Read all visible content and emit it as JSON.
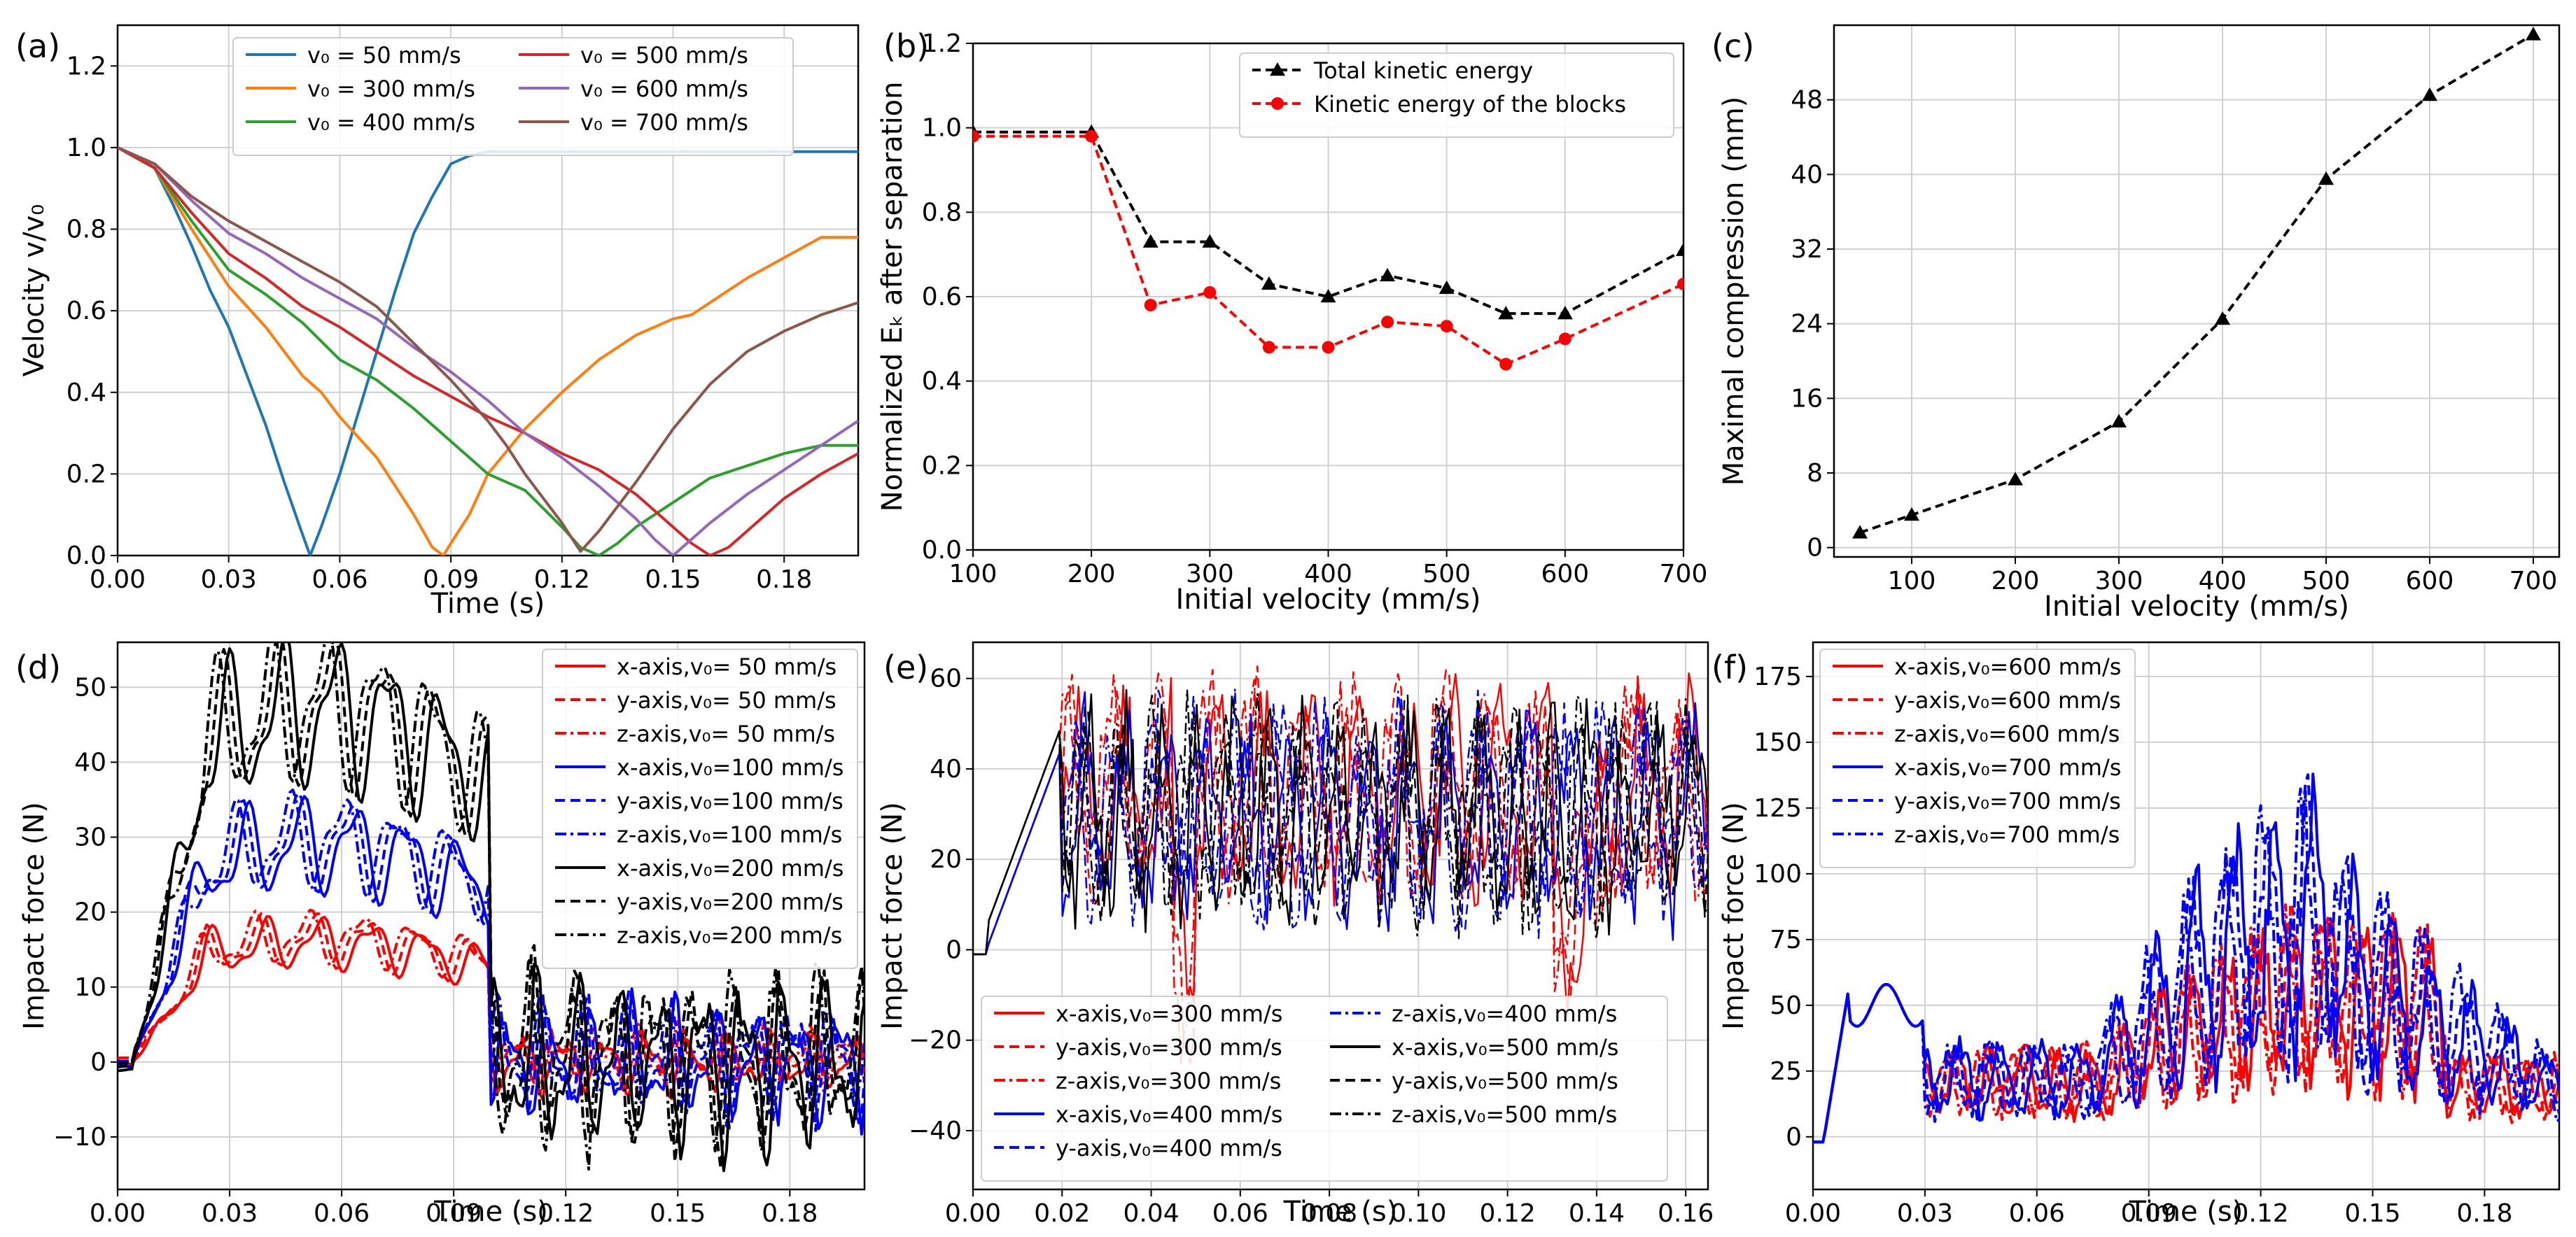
{
  "chart_data": [
    {
      "panel_label": "(a)",
      "type": "line",
      "xlabel": "Time (s)",
      "ylabel": "Velocity v/v₀",
      "xlim": [
        0,
        0.2
      ],
      "ylim": [
        0,
        1.3
      ],
      "xticks": [
        "0.00",
        "0.03",
        "0.06",
        "0.09",
        "0.12",
        "0.15",
        "0.18"
      ],
      "yticks": [
        "0.0",
        "0.2",
        "0.4",
        "0.6",
        "0.8",
        "1.0",
        "1.2"
      ],
      "grid": true,
      "legend_placement": "top",
      "series": [
        {
          "name": "v₀ =  50 mm/s",
          "color": "#1f77b4",
          "x": [
            0,
            0.005,
            0.01,
            0.015,
            0.02,
            0.025,
            0.03,
            0.035,
            0.04,
            0.045,
            0.05,
            0.052,
            0.055,
            0.06,
            0.065,
            0.07,
            0.075,
            0.08,
            0.085,
            0.09,
            0.095,
            0.1,
            0.105,
            0.11,
            0.15,
            0.2
          ],
          "y": [
            1.0,
            0.98,
            0.95,
            0.86,
            0.76,
            0.65,
            0.56,
            0.44,
            0.32,
            0.18,
            0.05,
            0.0,
            0.07,
            0.2,
            0.35,
            0.5,
            0.65,
            0.79,
            0.88,
            0.96,
            0.98,
            0.99,
            0.99,
            0.99,
            0.99,
            0.99
          ]
        },
        {
          "name": "v₀ = 300 mm/s",
          "color": "#ff7f0e",
          "x": [
            0,
            0.01,
            0.02,
            0.03,
            0.04,
            0.05,
            0.055,
            0.06,
            0.07,
            0.08,
            0.085,
            0.088,
            0.09,
            0.095,
            0.1,
            0.11,
            0.12,
            0.13,
            0.14,
            0.15,
            0.155,
            0.16,
            0.17,
            0.18,
            0.19,
            0.2
          ],
          "y": [
            1.0,
            0.95,
            0.8,
            0.66,
            0.56,
            0.44,
            0.4,
            0.34,
            0.24,
            0.1,
            0.02,
            0.0,
            0.03,
            0.1,
            0.2,
            0.31,
            0.4,
            0.48,
            0.54,
            0.58,
            0.59,
            0.62,
            0.68,
            0.73,
            0.78,
            0.78
          ]
        },
        {
          "name": "v₀ = 400 mm/s",
          "color": "#2ca02c",
          "x": [
            0,
            0.01,
            0.02,
            0.03,
            0.04,
            0.05,
            0.06,
            0.07,
            0.08,
            0.09,
            0.1,
            0.11,
            0.12,
            0.125,
            0.13,
            0.135,
            0.14,
            0.15,
            0.16,
            0.17,
            0.18,
            0.19,
            0.2
          ],
          "y": [
            1.0,
            0.95,
            0.82,
            0.7,
            0.64,
            0.57,
            0.48,
            0.43,
            0.36,
            0.28,
            0.2,
            0.16,
            0.07,
            0.02,
            0.0,
            0.03,
            0.07,
            0.13,
            0.19,
            0.22,
            0.25,
            0.27,
            0.27
          ]
        },
        {
          "name": "v₀ = 500 mm/s",
          "color": "#d62728",
          "x": [
            0,
            0.01,
            0.02,
            0.03,
            0.04,
            0.05,
            0.06,
            0.07,
            0.08,
            0.09,
            0.1,
            0.11,
            0.12,
            0.13,
            0.14,
            0.15,
            0.155,
            0.16,
            0.165,
            0.17,
            0.18,
            0.19,
            0.2
          ],
          "y": [
            1.0,
            0.95,
            0.84,
            0.74,
            0.68,
            0.61,
            0.56,
            0.5,
            0.44,
            0.39,
            0.34,
            0.3,
            0.25,
            0.21,
            0.15,
            0.07,
            0.03,
            0.0,
            0.02,
            0.06,
            0.14,
            0.2,
            0.25
          ]
        },
        {
          "name": "v₀ = 600 mm/s",
          "color": "#9467bd",
          "x": [
            0,
            0.01,
            0.02,
            0.03,
            0.04,
            0.05,
            0.06,
            0.07,
            0.08,
            0.09,
            0.1,
            0.11,
            0.12,
            0.13,
            0.14,
            0.145,
            0.15,
            0.155,
            0.16,
            0.17,
            0.18,
            0.19,
            0.2
          ],
          "y": [
            1.0,
            0.96,
            0.87,
            0.79,
            0.74,
            0.68,
            0.63,
            0.58,
            0.51,
            0.45,
            0.38,
            0.3,
            0.24,
            0.17,
            0.09,
            0.04,
            0.0,
            0.04,
            0.08,
            0.15,
            0.21,
            0.27,
            0.33
          ]
        },
        {
          "name": "v₀ = 700 mm/s",
          "color": "#8c564b",
          "x": [
            0,
            0.01,
            0.02,
            0.03,
            0.04,
            0.05,
            0.06,
            0.07,
            0.08,
            0.09,
            0.1,
            0.105,
            0.11,
            0.12,
            0.125,
            0.13,
            0.14,
            0.15,
            0.16,
            0.17,
            0.18,
            0.19,
            0.2
          ],
          "y": [
            1.0,
            0.96,
            0.88,
            0.82,
            0.77,
            0.72,
            0.67,
            0.61,
            0.52,
            0.43,
            0.33,
            0.27,
            0.2,
            0.08,
            0.01,
            0.06,
            0.18,
            0.31,
            0.42,
            0.5,
            0.55,
            0.59,
            0.62
          ]
        }
      ]
    },
    {
      "panel_label": "(b)",
      "type": "line",
      "xlabel": "Initial velocity (mm/s)",
      "ylabel": "Normalized Eₖ after separation",
      "xlim": [
        100,
        700
      ],
      "ylim": [
        0,
        1.2
      ],
      "xticks": [
        "100",
        "200",
        "300",
        "400",
        "500",
        "600",
        "700"
      ],
      "yticks": [
        "0.0",
        "0.2",
        "0.4",
        "0.6",
        "0.8",
        "1.0",
        "1.2"
      ],
      "grid": true,
      "legend_placement": "top-right",
      "series": [
        {
          "name": "Total kinetic energy",
          "color": "#000000",
          "marker": "triangle",
          "x": [
            100,
            200,
            250,
            300,
            350,
            400,
            450,
            500,
            550,
            600,
            700
          ],
          "y": [
            0.99,
            0.99,
            0.73,
            0.73,
            0.63,
            0.6,
            0.65,
            0.62,
            0.56,
            0.56,
            0.71
          ]
        },
        {
          "name": "Kinetic energy of the blocks",
          "color": "#ff0000",
          "marker": "circle",
          "x": [
            100,
            200,
            250,
            300,
            350,
            400,
            450,
            500,
            550,
            600,
            700
          ],
          "y": [
            0.98,
            0.98,
            0.58,
            0.61,
            0.48,
            0.48,
            0.54,
            0.53,
            0.44,
            0.5,
            0.63
          ]
        }
      ]
    },
    {
      "panel_label": "(c)",
      "type": "line",
      "xlabel": "Initial velocity (mm/s)",
      "ylabel": "Maximal compression (mm)",
      "xlim": [
        25,
        725
      ],
      "ylim": [
        -1,
        56
      ],
      "xticks": [
        "100",
        "200",
        "300",
        "400",
        "500",
        "600",
        "700"
      ],
      "yticks": [
        "0",
        "8",
        "16",
        "24",
        "32",
        "40",
        "48"
      ],
      "grid": true,
      "series": [
        {
          "color": "#000000",
          "marker": "triangle",
          "x": [
            50,
            100,
            200,
            300,
            400,
            500,
            600,
            700
          ],
          "y": [
            1.6,
            3.5,
            7.3,
            13.5,
            24.5,
            39.5,
            48.5,
            55
          ]
        }
      ]
    },
    {
      "panel_label": "(d)",
      "type": "line",
      "xlabel": "Time (s)",
      "ylabel": "Impact force (N)",
      "xlim": [
        0,
        0.2
      ],
      "ylim": [
        -17,
        56
      ],
      "xticks": [
        "0.00",
        "0.03",
        "0.06",
        "0.09",
        "0.12",
        "0.15",
        "0.18"
      ],
      "yticks": [
        "−10",
        "0",
        "10",
        "20",
        "30",
        "40",
        "50"
      ],
      "grid": true,
      "legend_placement": "top-right",
      "series": [
        {
          "name": "x-axis,v₀= 50 mm/s",
          "color": "#ff0000",
          "dash": "solid"
        },
        {
          "name": "y-axis,v₀= 50 mm/s",
          "color": "#ff0000",
          "dash": "dashed"
        },
        {
          "name": "z-axis,v₀= 50 mm/s",
          "color": "#ff0000",
          "dash": "dashdot"
        },
        {
          "name": "x-axis,v₀=100 mm/s",
          "color": "#0000ff",
          "dash": "solid"
        },
        {
          "name": "y-axis,v₀=100 mm/s",
          "color": "#0000ff",
          "dash": "dashed"
        },
        {
          "name": "z-axis,v₀=100 mm/s",
          "color": "#0000ff",
          "dash": "dashdot"
        },
        {
          "name": "x-axis,v₀=200 mm/s",
          "color": "#000000",
          "dash": "solid"
        },
        {
          "name": "y-axis,v₀=200 mm/s",
          "color": "#000000",
          "dash": "dashed"
        },
        {
          "name": "z-axis,v₀=200 mm/s",
          "color": "#000000",
          "dash": "dashdot"
        }
      ]
    },
    {
      "panel_label": "(e)",
      "type": "line",
      "xlabel": "Time (s)",
      "ylabel": "Impact force (N)",
      "xlim": [
        0,
        0.165
      ],
      "ylim": [
        -53,
        68
      ],
      "xticks": [
        "0.00",
        "0.02",
        "0.04",
        "0.06",
        "0.08",
        "0.10",
        "0.12",
        "0.14",
        "0.16"
      ],
      "yticks": [
        "−40",
        "−20",
        "0",
        "20",
        "40",
        "60"
      ],
      "grid": true,
      "legend_placement": "bottom-left",
      "series": [
        {
          "name": "x-axis,v₀=300 mm/s",
          "color": "#ff0000",
          "dash": "solid"
        },
        {
          "name": "y-axis,v₀=300 mm/s",
          "color": "#ff0000",
          "dash": "dashed"
        },
        {
          "name": "z-axis,v₀=300 mm/s",
          "color": "#ff0000",
          "dash": "dashdot"
        },
        {
          "name": "x-axis,v₀=400 mm/s",
          "color": "#0000ff",
          "dash": "solid"
        },
        {
          "name": "y-axis,v₀=400 mm/s",
          "color": "#0000ff",
          "dash": "dashed"
        },
        {
          "name": "z-axis,v₀=400 mm/s",
          "color": "#0000ff",
          "dash": "dashdot"
        },
        {
          "name": "x-axis,v₀=500 mm/s",
          "color": "#000000",
          "dash": "solid"
        },
        {
          "name": "y-axis,v₀=500 mm/s",
          "color": "#000000",
          "dash": "dashed"
        },
        {
          "name": "z-axis,v₀=500 mm/s",
          "color": "#000000",
          "dash": "dashdot"
        }
      ]
    },
    {
      "panel_label": "(f)",
      "type": "line",
      "xlabel": "Time (s)",
      "ylabel": "Impact force (N)",
      "xlim": [
        0,
        0.2
      ],
      "ylim": [
        -20,
        188
      ],
      "xticks": [
        "0.00",
        "0.03",
        "0.06",
        "0.09",
        "0.12",
        "0.15",
        "0.18"
      ],
      "yticks": [
        "0",
        "25",
        "50",
        "75",
        "100",
        "125",
        "150",
        "175"
      ],
      "grid": true,
      "legend_placement": "top-left",
      "series": [
        {
          "name": "x-axis,v₀=600 mm/s",
          "color": "#ff0000",
          "dash": "solid"
        },
        {
          "name": "y-axis,v₀=600 mm/s",
          "color": "#ff0000",
          "dash": "dashed"
        },
        {
          "name": "z-axis,v₀=600 mm/s",
          "color": "#ff0000",
          "dash": "dashdot"
        },
        {
          "name": "x-axis,v₀=700 mm/s",
          "color": "#0000ff",
          "dash": "solid"
        },
        {
          "name": "y-axis,v₀=700 mm/s",
          "color": "#0000ff",
          "dash": "dashed"
        },
        {
          "name": "z-axis,v₀=700 mm/s",
          "color": "#0000ff",
          "dash": "dashdot"
        }
      ]
    }
  ]
}
